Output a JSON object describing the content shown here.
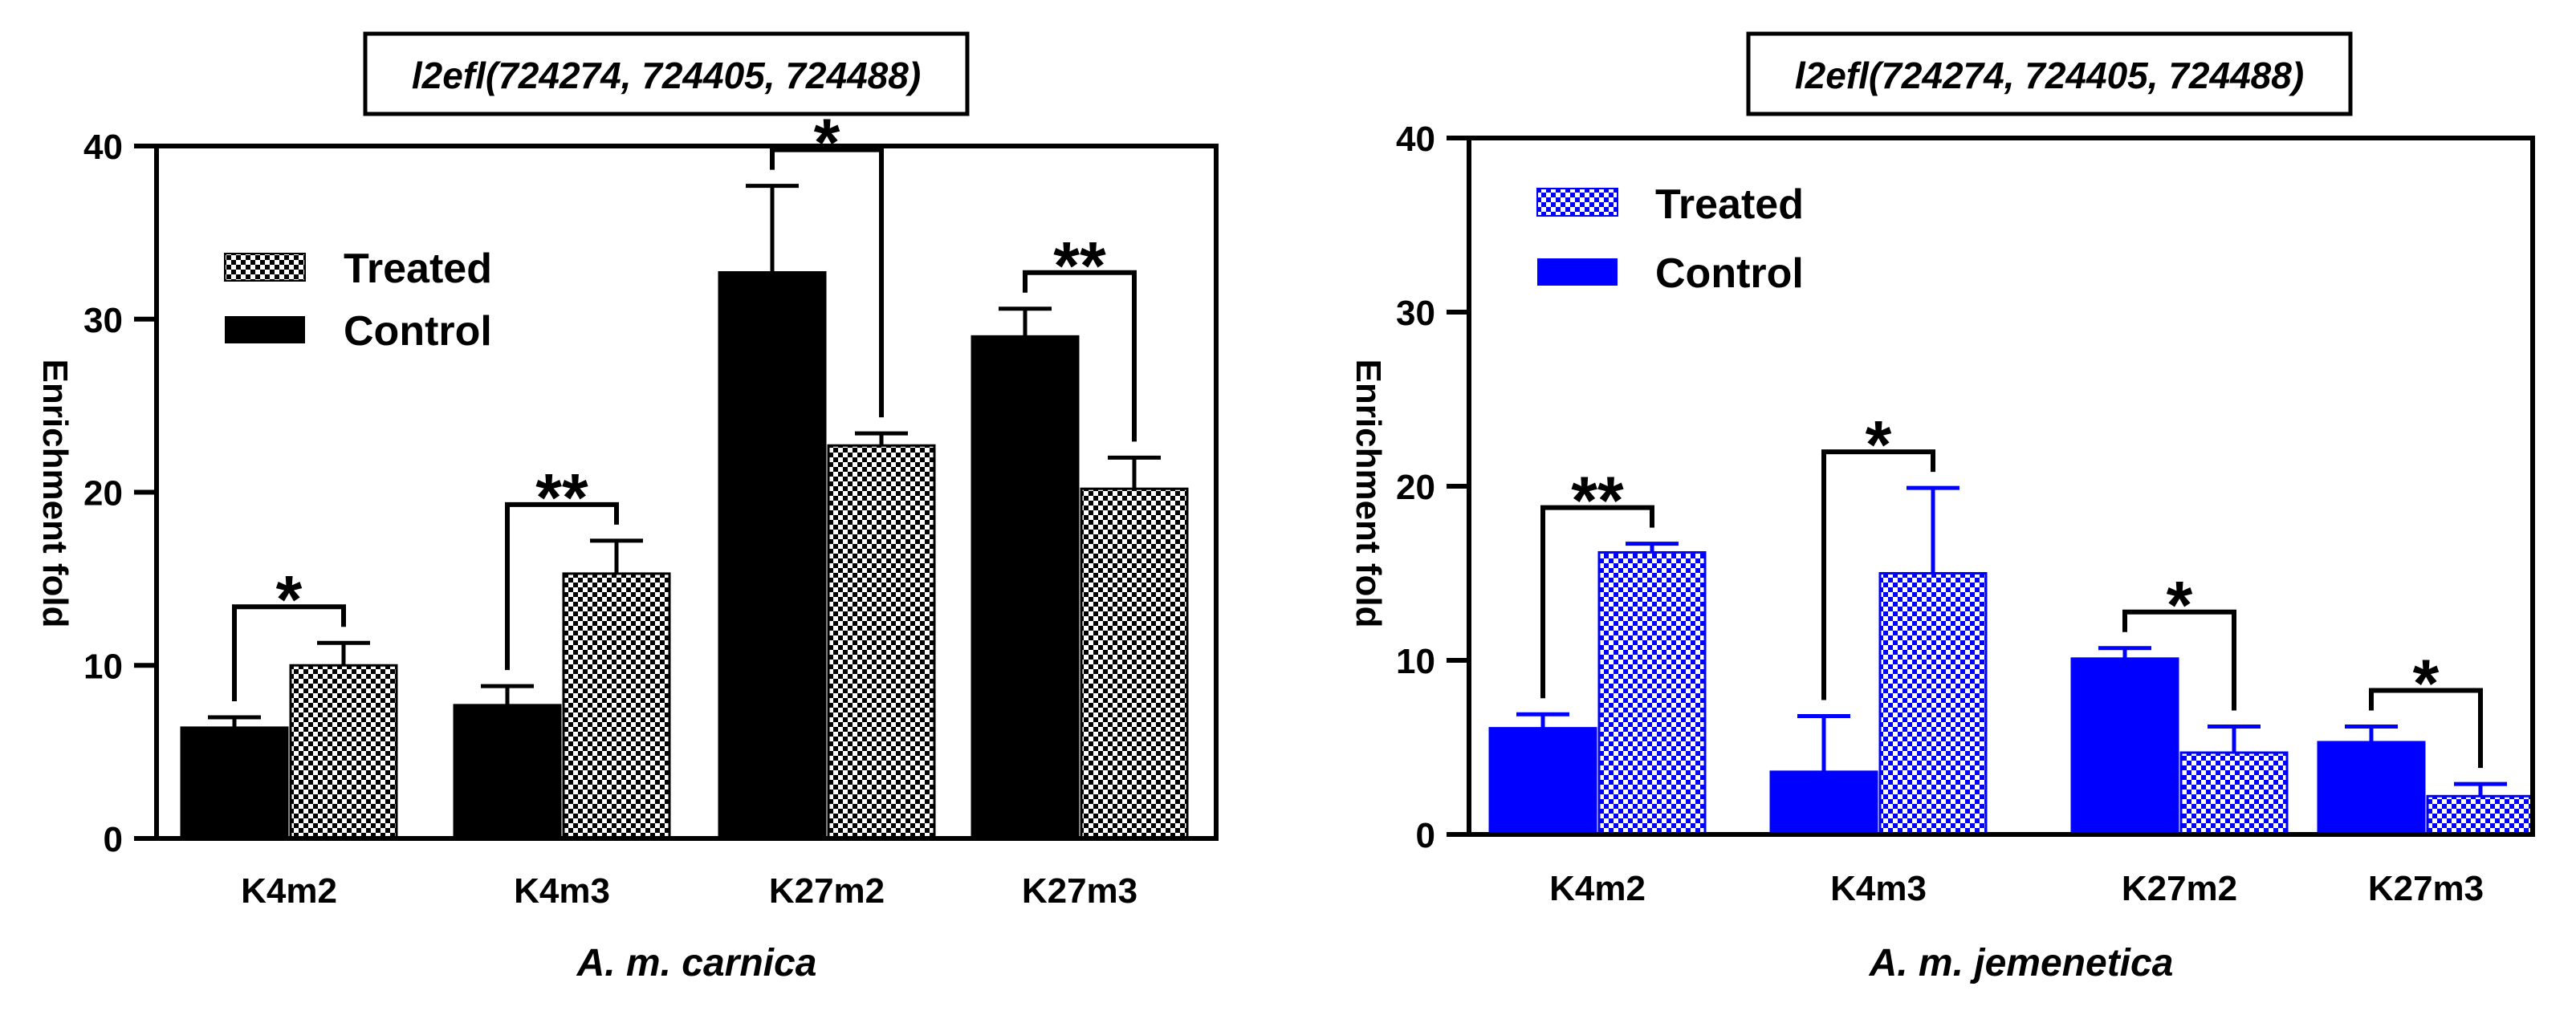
{
  "chart_data": [
    {
      "type": "bar",
      "title": "l2efl(724274, 724405, 724488)",
      "xlabel": "A. m. carnica",
      "ylabel": "Enrichment fold",
      "ylim": [
        0,
        40
      ],
      "yticks": [
        "0",
        "10",
        "20",
        "30",
        "40"
      ],
      "categories": [
        "K4m2",
        "K4m3",
        "K27m2",
        "K27m3"
      ],
      "legend_position": "top-left",
      "legend_order": [
        "Treated",
        "Control"
      ],
      "series": [
        {
          "name": "Control",
          "color": "#000000",
          "pattern": "solid",
          "values": [
            6.4,
            7.7,
            32.7,
            29.0
          ],
          "errors": [
            0.6,
            1.1,
            5.0,
            1.6
          ]
        },
        {
          "name": "Treated",
          "color": "#000000",
          "pattern": "checker",
          "values": [
            10.0,
            15.3,
            22.7,
            20.2
          ],
          "errors": [
            1.3,
            1.9,
            0.7,
            1.8
          ]
        }
      ],
      "significance": [
        {
          "category": "K4m2",
          "label": "*"
        },
        {
          "category": "K4m3",
          "label": "**"
        },
        {
          "category": "K27m2",
          "label": "*"
        },
        {
          "category": "K27m3",
          "label": "**"
        }
      ]
    },
    {
      "type": "bar",
      "title": "l2efl(724274, 724405, 724488)",
      "xlabel": "A. m. jemenetica",
      "ylabel": "Enrichment fold",
      "ylim": [
        0,
        40
      ],
      "yticks": [
        "0",
        "10",
        "20",
        "30",
        "40"
      ],
      "categories": [
        "K4m2",
        "K4m3",
        "K27m2",
        "K27m3"
      ],
      "legend_position": "top-left",
      "legend_order": [
        "Treated",
        "Control"
      ],
      "series": [
        {
          "name": "Control",
          "color": "#0000ff",
          "pattern": "solid",
          "values": [
            6.1,
            3.6,
            10.1,
            5.3
          ],
          "errors": [
            0.8,
            3.2,
            0.6,
            0.9
          ]
        },
        {
          "name": "Treated",
          "color": "#0000ff",
          "pattern": "checker",
          "values": [
            16.2,
            15.0,
            4.7,
            2.2
          ],
          "errors": [
            0.5,
            4.9,
            1.5,
            0.7
          ]
        }
      ],
      "significance": [
        {
          "category": "K4m2",
          "label": "**"
        },
        {
          "category": "K4m3",
          "label": "*"
        },
        {
          "category": "K27m2",
          "label": "*"
        },
        {
          "category": "K27m3",
          "label": "*"
        }
      ]
    }
  ]
}
